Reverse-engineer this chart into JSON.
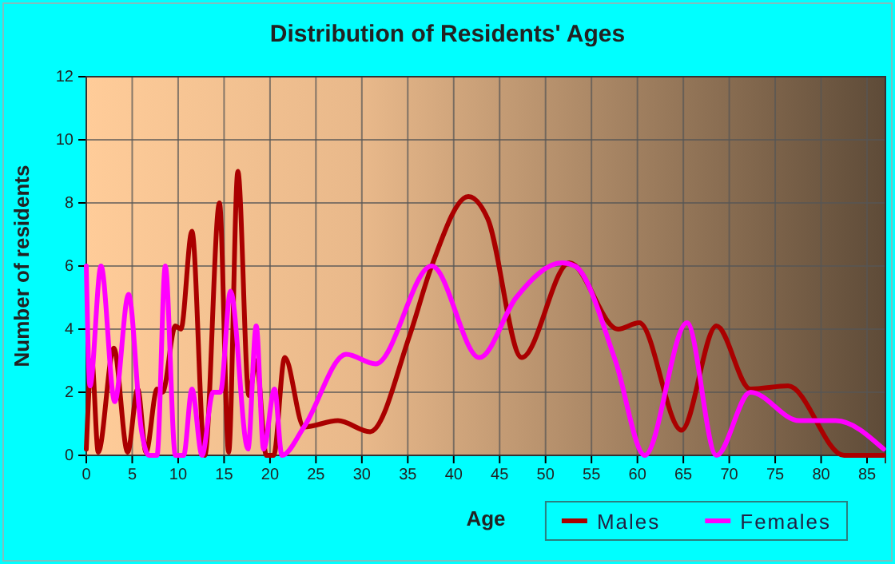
{
  "chart_data": {
    "type": "line",
    "title": "Distribution of Residents' Ages",
    "xlabel": "Age",
    "ylabel": "Number of residents",
    "xlim": [
      0,
      87
    ],
    "xticks": [
      0,
      5,
      10,
      15,
      20,
      25,
      30,
      35,
      40,
      45,
      50,
      55,
      60,
      65,
      70,
      75,
      80,
      85
    ],
    "ylim": [
      0,
      12
    ],
    "yticks": [
      0,
      2,
      4,
      6,
      8,
      10,
      12
    ],
    "grid": true,
    "legend": "bottom",
    "line_style": "solid",
    "marker": "none",
    "series": [
      {
        "name": "Males",
        "color": "#aa0000",
        "x": [
          0,
          0.6,
          1.3,
          3,
          4.5,
          5.6,
          6.5,
          7.7,
          8.3,
          9.7,
          10.3,
          11.5,
          12.9,
          14.5,
          15.5,
          16.5,
          17.7,
          18.5,
          19.6,
          20.4,
          21.6,
          23.7,
          27.4,
          30.9,
          35.2,
          37.6,
          41.6,
          43.7,
          47.4,
          52.6,
          57.9,
          60.2,
          64.8,
          68.6,
          72.3,
          76.4,
          82.5,
          86.8
        ],
        "values": [
          0.2,
          3,
          0.1,
          3.4,
          0.1,
          2.1,
          0.1,
          2.1,
          2,
          4.1,
          4,
          7.1,
          0,
          8,
          0.1,
          9,
          1.9,
          3,
          0,
          0,
          3.1,
          0.9,
          1.1,
          0.75,
          3.8,
          6,
          8.2,
          7.5,
          3.1,
          6.1,
          4,
          4.2,
          0.8,
          4.1,
          2.1,
          2.2,
          0,
          0
        ]
      },
      {
        "name": "Females",
        "color": "#ff00ff",
        "x": [
          0,
          0.4,
          1.6,
          3.1,
          4.6,
          6,
          6.8,
          7.7,
          8.6,
          9.7,
          10.6,
          11.5,
          12.6,
          13.8,
          14.6,
          15.7,
          17.6,
          18.5,
          19.3,
          20.5,
          21.3,
          23.7,
          28.3,
          31.5,
          37.6,
          42.8,
          46.8,
          51.8,
          53.2,
          57.6,
          60.8,
          65.4,
          68.6,
          72.3,
          77.6,
          81.6,
          86.8
        ],
        "values": [
          6,
          2.2,
          6,
          1.7,
          5.1,
          0.8,
          0,
          0,
          6,
          0,
          0,
          2.1,
          0,
          2,
          2,
          5.2,
          0.2,
          4.1,
          0.2,
          2.1,
          0,
          0.9,
          3.2,
          2.9,
          6,
          3.1,
          5,
          6.1,
          6,
          3,
          0,
          4.2,
          0,
          2,
          1.1,
          1.1,
          0.2
        ]
      }
    ]
  }
}
